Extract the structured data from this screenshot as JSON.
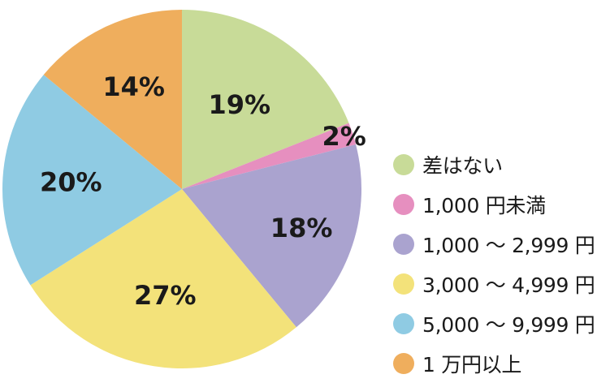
{
  "chart_data": {
    "type": "pie",
    "start_angle_deg": 0,
    "direction": "clockwise",
    "slices": [
      {
        "label": "差はない",
        "value": 19,
        "value_label": "19%",
        "color": "#c8db98"
      },
      {
        "label": "1,000 円未満",
        "value": 2,
        "value_label": "2%",
        "color": "#e68fbf"
      },
      {
        "label": "1,000 ～ 2,999 円",
        "value": 18,
        "value_label": "18%",
        "color": "#aaa3cf"
      },
      {
        "label": "3,000 ～ 4,999 円",
        "value": 27,
        "value_label": "27%",
        "color": "#f3e27a"
      },
      {
        "label": "5,000 ～ 9,999 円",
        "value": 20,
        "value_label": "20%",
        "color": "#8fcbe3"
      },
      {
        "label": "1 万円以上",
        "value": 14,
        "value_label": "14%",
        "color": "#efae5d"
      }
    ],
    "legend_position": "right"
  }
}
